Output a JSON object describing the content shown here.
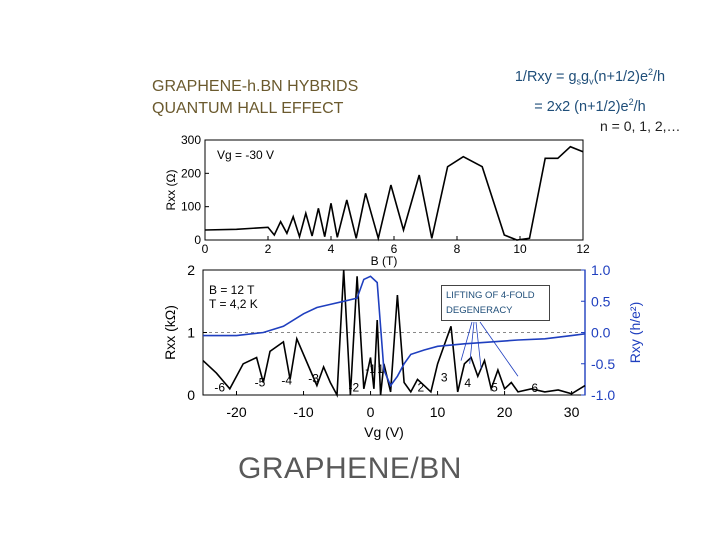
{
  "title": {
    "line1": "GRAPHENE-h.BN HYBRIDS",
    "line2": "QUANTUM HALL EFFECT"
  },
  "formula": {
    "line1": "1/Rxy = gsgv(n+1/2)e²/h",
    "line2": "= 2x2 (n+1/2)e²/h",
    "n_values": "n = 0, 1, 2,…"
  },
  "caption": "GRAPHENE/BN",
  "annotation": {
    "line1": "LIFTING OF 4-FOLD",
    "line2": "DEGENERACY"
  },
  "chart_data": [
    {
      "type": "line",
      "panel_label": "Vg = -30 V",
      "xlabel": "B (T)",
      "ylabel": "Rxx (Ω)",
      "xlim": [
        0,
        12
      ],
      "ylim": [
        0,
        300
      ],
      "xticks": [
        "0",
        "2",
        "4",
        "6",
        "8",
        "10",
        "12"
      ],
      "yticks": [
        "0",
        "100",
        "200",
        "300"
      ],
      "series": [
        {
          "color": "#000000",
          "x": [
            0,
            1.0,
            2.0,
            2.2,
            2.4,
            2.6,
            2.8,
            3.0,
            3.2,
            3.4,
            3.6,
            3.8,
            4.0,
            4.2,
            4.5,
            4.8,
            5.1,
            5.5,
            5.9,
            6.3,
            6.8,
            7.2,
            7.7,
            8.2,
            8.8,
            9.5,
            9.9,
            10.3,
            10.8,
            11.2,
            11.6,
            12.0
          ],
          "y": [
            30,
            32,
            38,
            15,
            55,
            20,
            70,
            10,
            80,
            12,
            95,
            10,
            110,
            8,
            120,
            5,
            140,
            5,
            165,
            30,
            195,
            5,
            220,
            250,
            220,
            15,
            0,
            5,
            245,
            245,
            280,
            265
          ]
        }
      ]
    },
    {
      "type": "line",
      "panel_labels": [
        "B = 12 T",
        "T = 4,2 K"
      ],
      "xlabel": "Vg (V)",
      "ylabel_left": "Rxx (kΩ)",
      "ylabel_right": "Rxy (h/e²)",
      "xlim": [
        -25,
        32
      ],
      "ylim_left": [
        0,
        2
      ],
      "ylim_right": [
        -1.0,
        1.0
      ],
      "xticks": [
        "-20",
        "-10",
        "0",
        "10",
        "20",
        "30"
      ],
      "yticks_left": [
        "0",
        "1",
        "2"
      ],
      "yticks_right": [
        "1.0",
        "0.5",
        "0.0",
        "-0.5",
        "-1.0"
      ],
      "state_labels": [
        "-6",
        "-5",
        "-4",
        "-3",
        "-2",
        "-1",
        "1",
        "2",
        "3",
        "4",
        "5",
        "6"
      ],
      "series": [
        {
          "color": "#000000",
          "x": [
            -25,
            -23,
            -21,
            -19,
            -17,
            -16,
            -15,
            -13,
            -12,
            -11,
            -9,
            -8,
            -7,
            -6,
            -5,
            -4,
            -3,
            -2,
            -1,
            0,
            0.5,
            1,
            1.5,
            2,
            3,
            4,
            5,
            6,
            7,
            8,
            9,
            10,
            11,
            12,
            13,
            14,
            15,
            16,
            17,
            18,
            19,
            20,
            21,
            22,
            24,
            26,
            28,
            30,
            32
          ],
          "y": [
            0.55,
            0.35,
            0.1,
            0.5,
            0.6,
            0.2,
            0.7,
            0.85,
            0.25,
            0.9,
            0.4,
            0.15,
            0.45,
            0.2,
            0.0,
            2.0,
            0.0,
            1.9,
            0.1,
            0.6,
            0.1,
            1.2,
            0.0,
            0.5,
            0.05,
            1.6,
            0.2,
            0.05,
            0.25,
            0.15,
            0.05,
            0.5,
            0.8,
            1.1,
            0.05,
            0.5,
            0.6,
            0.3,
            0.55,
            0.1,
            0.4,
            0.1,
            0.2,
            0.05,
            0.1,
            0.05,
            0.08,
            0.02,
            0.15
          ]
        },
        {
          "color": "#1f3fbf",
          "x": [
            -25,
            -20,
            -16,
            -13,
            -10,
            -8,
            -6,
            -4,
            -2,
            -1,
            0,
            1,
            2,
            3,
            4,
            5,
            6,
            8,
            10,
            14,
            18,
            22,
            26,
            30,
            32
          ],
          "y": [
            -0.05,
            -0.05,
            0.0,
            0.1,
            0.3,
            0.4,
            0.45,
            0.5,
            0.55,
            0.85,
            0.9,
            0.8,
            -0.6,
            -0.85,
            -0.7,
            -0.5,
            -0.35,
            -0.28,
            -0.22,
            -0.18,
            -0.15,
            -0.12,
            -0.1,
            -0.05,
            -0.02
          ]
        }
      ]
    }
  ]
}
